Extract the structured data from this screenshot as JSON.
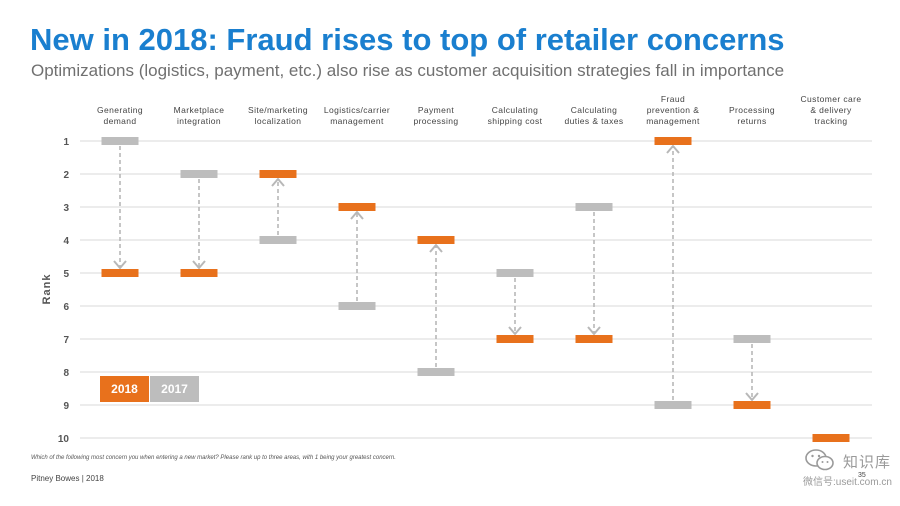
{
  "title": "New in 2018: Fraud rises to top of retailer concerns",
  "subtitle": "Optimizations (logistics, payment, etc.) also rise as customer acquisition strategies fall in importance",
  "footnote": "Which of the following most concern you when entering a new market? Please rank up to three areas, with 1 being your greatest concern.",
  "footer": "Pitney Bowes | 2018",
  "page_number": "35",
  "watermark": {
    "brand": "知识库",
    "id": "微信号:useit.com.cn",
    "icon": "wechat-icon"
  },
  "colors": {
    "y2018": "#e8711c",
    "y2017": "#bdbdbd",
    "arrow": "#b8b8b8",
    "grid": "#d9d9d9",
    "title": "#1a7fcf"
  },
  "chart_data": {
    "type": "dumbbell",
    "title": "New in 2018: Fraud rises to top of retailer concerns",
    "ylabel": "Rank",
    "ylim": [
      1,
      10
    ],
    "y_ticks": [
      "1",
      "2",
      "3",
      "4",
      "5",
      "6",
      "7",
      "8",
      "9",
      "10"
    ],
    "y_inverted": true,
    "grid": true,
    "legend": [
      "2018",
      "2017"
    ],
    "legend_position": "bottom-left",
    "categories": [
      "Generating demand",
      "Marketplace integration",
      "Site/marketing localization",
      "Logistics/carrier management",
      "Payment processing",
      "Calculating shipping cost",
      "Calculating duties & taxes",
      "Fraud prevention & management",
      "Processing returns",
      "Customer care & delivery tracking"
    ],
    "category_lines": [
      [
        "Generating",
        "demand"
      ],
      [
        "Marketplace",
        "integration"
      ],
      [
        "Site/marketing",
        "localization"
      ],
      [
        "Logistics/carrier",
        "management"
      ],
      [
        "Payment",
        "processing"
      ],
      [
        "Calculating",
        "shipping cost"
      ],
      [
        "Calculating",
        "duties & taxes"
      ],
      [
        "Fraud",
        "prevention &",
        "management"
      ],
      [
        "Processing",
        "returns"
      ],
      [
        "Customer care",
        "& delivery",
        "tracking"
      ]
    ],
    "series": [
      {
        "name": "2017",
        "values": [
          1,
          2,
          4,
          6,
          8,
          5,
          3,
          9,
          7,
          null
        ]
      },
      {
        "name": "2018",
        "values": [
          5,
          5,
          2,
          3,
          4,
          7,
          7,
          1,
          9,
          10
        ]
      }
    ]
  }
}
